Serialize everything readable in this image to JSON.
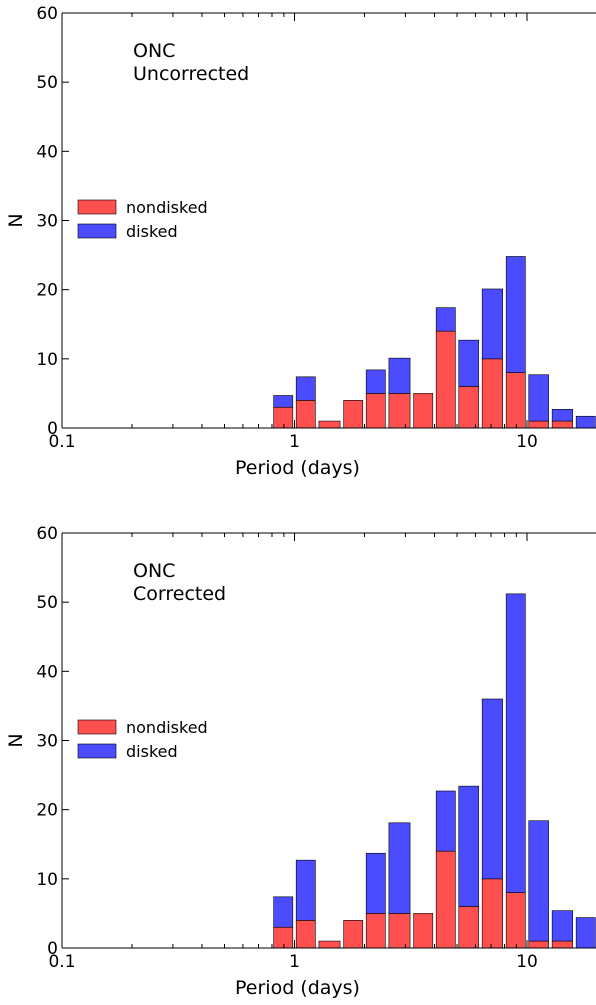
{
  "chart_data": [
    {
      "type": "bar",
      "stacked": true,
      "x_scale": "log",
      "xlim": [
        0.1,
        20
      ],
      "ylim": [
        0,
        60
      ],
      "xticks": [
        "0.1",
        "1",
        "10"
      ],
      "yticks": [
        "0",
        "10",
        "20",
        "30",
        "40",
        "50",
        "60"
      ],
      "xlabel": "Period (days)",
      "ylabel": "N",
      "annotation": [
        "ONC",
        "Uncorrected"
      ],
      "legend_position": "center-left",
      "grid": false,
      "bins": [
        [
          0.8,
          1.0
        ],
        [
          1.0,
          1.25
        ],
        [
          1.25,
          1.6
        ],
        [
          1.6,
          2.0
        ],
        [
          2.0,
          2.5
        ],
        [
          2.5,
          3.2
        ],
        [
          3.2,
          4.0
        ],
        [
          4.0,
          5.0
        ],
        [
          5.0,
          6.3
        ],
        [
          6.3,
          8.0
        ],
        [
          8.0,
          10.0
        ],
        [
          10.0,
          12.6
        ],
        [
          12.6,
          16.0
        ],
        [
          16.0,
          20.0
        ]
      ],
      "series": [
        {
          "name": "nondisked",
          "color": "#ff5050",
          "values": [
            3,
            4,
            1,
            4,
            5,
            5,
            5,
            14,
            6,
            10,
            8,
            1,
            1,
            0
          ]
        },
        {
          "name": "disked",
          "color": "#4b4bff",
          "values": [
            1.7,
            3.4,
            0,
            0,
            3.4,
            5.1,
            0,
            3.4,
            6.7,
            10.1,
            16.8,
            6.7,
            1.7,
            1.7
          ]
        }
      ]
    },
    {
      "type": "bar",
      "stacked": true,
      "x_scale": "log",
      "xlim": [
        0.1,
        20
      ],
      "ylim": [
        0,
        60
      ],
      "xticks": [
        "0.1",
        "1",
        "10"
      ],
      "yticks": [
        "0",
        "10",
        "20",
        "30",
        "40",
        "50",
        "60"
      ],
      "xlabel": "Period (days)",
      "ylabel": "N",
      "annotation": [
        "ONC",
        "Corrected"
      ],
      "legend_position": "center-left",
      "grid": false,
      "bins": [
        [
          0.8,
          1.0
        ],
        [
          1.0,
          1.25
        ],
        [
          1.25,
          1.6
        ],
        [
          1.6,
          2.0
        ],
        [
          2.0,
          2.5
        ],
        [
          2.5,
          3.2
        ],
        [
          3.2,
          4.0
        ],
        [
          4.0,
          5.0
        ],
        [
          5.0,
          6.3
        ],
        [
          6.3,
          8.0
        ],
        [
          8.0,
          10.0
        ],
        [
          10.0,
          12.6
        ],
        [
          12.6,
          16.0
        ],
        [
          16.0,
          20.0
        ]
      ],
      "series": [
        {
          "name": "nondisked",
          "color": "#ff5050",
          "values": [
            3,
            4,
            1,
            4,
            5,
            5,
            5,
            14,
            6,
            10,
            8,
            1,
            1,
            0
          ]
        },
        {
          "name": "disked",
          "color": "#4b4bff",
          "values": [
            4.4,
            8.7,
            0,
            0,
            8.7,
            13.1,
            0,
            8.7,
            17.4,
            26.0,
            43.2,
            17.4,
            4.4,
            4.4
          ]
        }
      ]
    }
  ]
}
